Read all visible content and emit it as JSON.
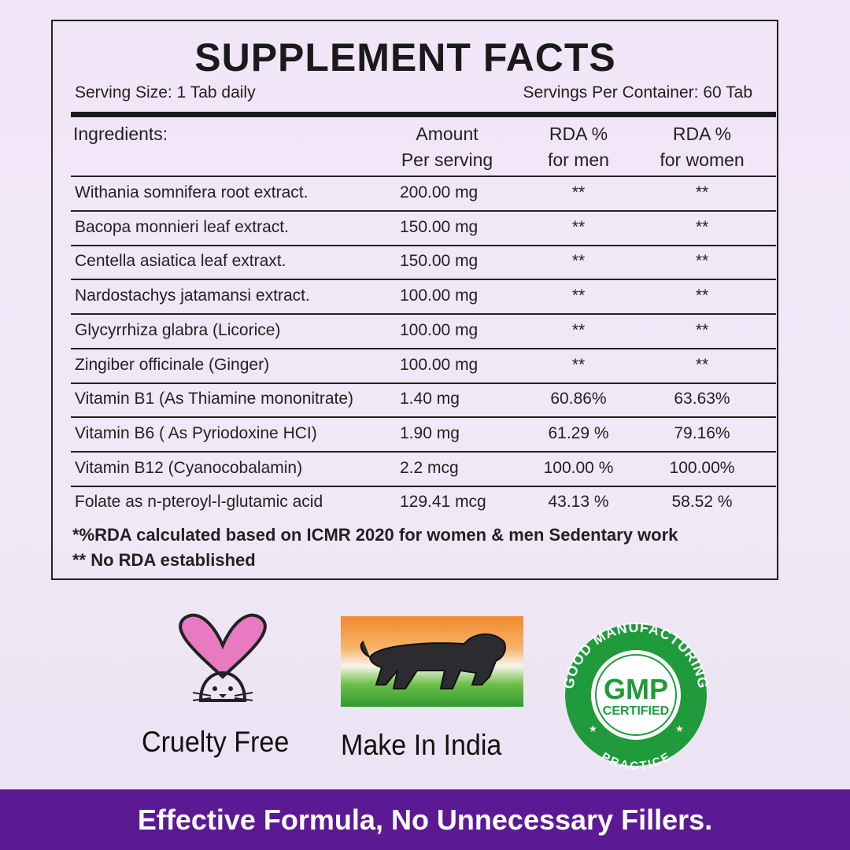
{
  "header": {
    "title": "SUPPLEMENT FACTS",
    "serving_size": "Serving Size: 1 Tab daily",
    "servings_per_container": "Servings Per Container: 60 Tab"
  },
  "table": {
    "columns": [
      [
        "Ingredients:"
      ],
      [
        "Amount",
        "Per serving"
      ],
      [
        "RDA %",
        "for men"
      ],
      [
        "RDA %",
        "for women"
      ]
    ],
    "rows": [
      [
        "Withania somnifera root extract.",
        "200.00 mg",
        "**",
        "**"
      ],
      [
        "Bacopa monnieri leaf extract.",
        "150.00 mg",
        "**",
        "**"
      ],
      [
        "Centella asiatica leaf extraxt.",
        "150.00 mg",
        "**",
        "**"
      ],
      [
        "Nardostachys jatamansi extract.",
        "100.00 mg",
        "**",
        "**"
      ],
      [
        "Glycyrrhiza glabra (Licorice)",
        "100.00 mg",
        "**",
        "**"
      ],
      [
        "Zingiber officinale (Ginger)",
        "100.00 mg",
        "**",
        "**"
      ],
      [
        "Vitamin B1 (As Thiamine mononitrate)",
        "1.40 mg",
        "60.86%",
        "63.63%"
      ],
      [
        "Vitamin B6 ( As Pyriodoxine HCI)",
        "1.90 mg",
        "61.29 %",
        "79.16%"
      ],
      [
        "Vitamin B12 (Cyanocobalamin)",
        "2.2 mcg",
        "100.00 %",
        "100.00%"
      ],
      [
        "Folate as n-pteroyl-l-glutamic acid",
        "129.41 mcg",
        "43.13 %",
        "58.52 %"
      ]
    ]
  },
  "footnotes": [
    "*%RDA calculated based on ICMR 2020 for women & men Sedentary work",
    "** No RDA established"
  ],
  "badges": {
    "cruelty_free": "Cruelty Free",
    "make_in_india": "Make In India",
    "gmp": {
      "top": "GOOD MANUFACTURING",
      "main": "GMP",
      "sub": "CERTIFIED",
      "bottom": "PRACTICE"
    }
  },
  "banner": "Effective Formula, No Unnecessary Fillers."
}
